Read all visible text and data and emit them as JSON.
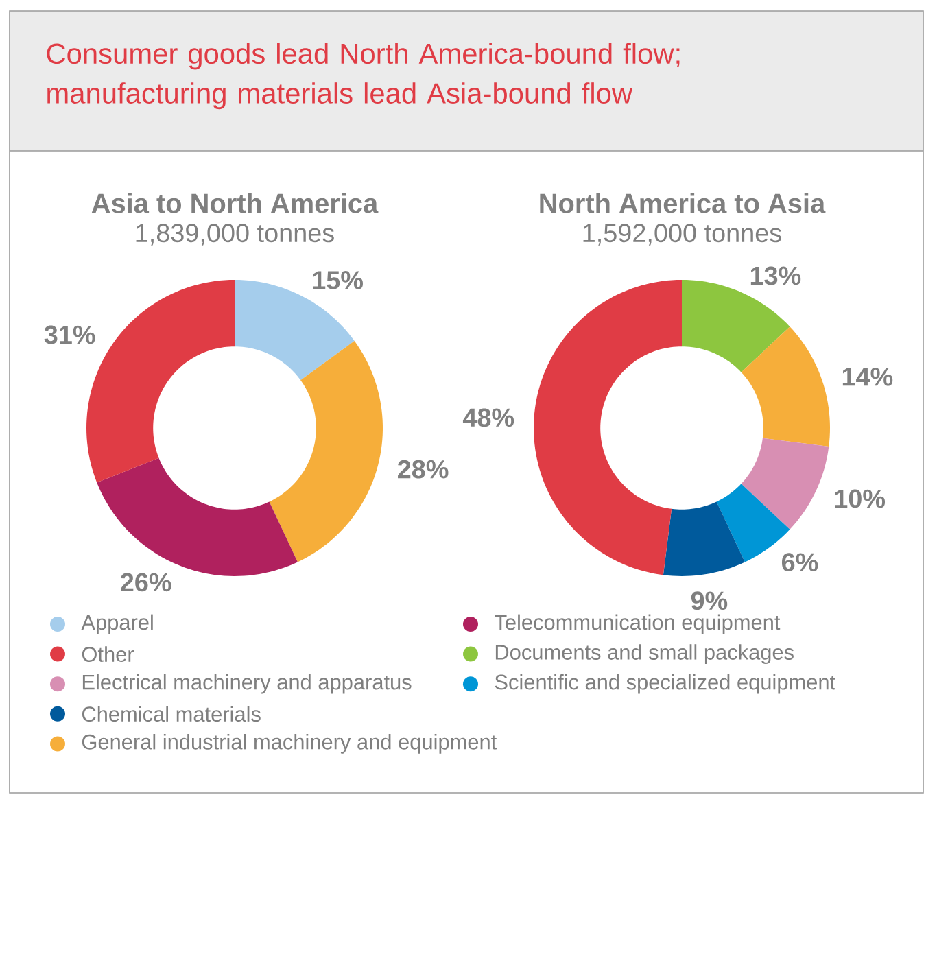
{
  "chart_data": [
    {
      "type": "donut",
      "title": "Asia to North America",
      "subtitle": "1,839,000 tonnes",
      "annotations": [
        "Consumer goods lead North America-bound flow; manufacturing materials lead Asia-bound flow"
      ],
      "categories": [
        "Apparel",
        "General industrial machinery and equipment",
        "Telecommunication equipment",
        "Other"
      ],
      "values": [
        15,
        28,
        26,
        31
      ],
      "colors": [
        "#a5cdec",
        "#f6ae3a",
        "#b0215e",
        "#e03c45"
      ],
      "value_labels": [
        "15%",
        "28%",
        "26%",
        "31%"
      ],
      "legend": "bottom"
    },
    {
      "type": "donut",
      "title": "North America to Asia",
      "subtitle": "1,592,000 tonnes",
      "categories": [
        "Documents and small packages",
        null,
        "Electrical machinery and apparatus",
        "Scientific and specialized equipment",
        "Chemical materials",
        null
      ],
      "values": [
        13,
        14,
        10,
        6,
        9,
        48
      ],
      "colors": [
        "#8dc63f",
        "#f6ae3a",
        "#d88fb3",
        "#0096d6",
        "#005a9c",
        "#e03c45"
      ],
      "value_labels": [
        "13%",
        "14%",
        "10%",
        "6%",
        "9%",
        "48%"
      ],
      "legend": "bottom"
    }
  ]
}
